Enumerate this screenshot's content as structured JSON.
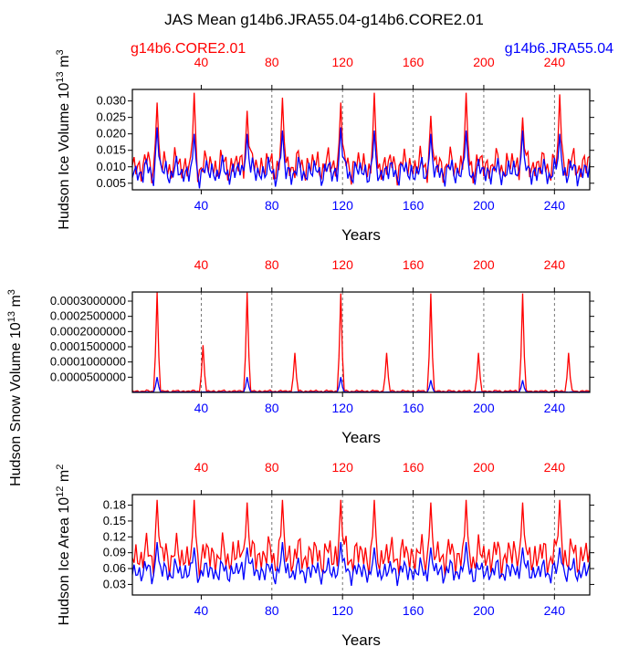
{
  "title": "JAS Mean g14b6.JRA55.04-g14b6.CORE2.01",
  "legend": {
    "left": "g14b6.CORE2.01",
    "right": "g14b6.JRA55.04"
  },
  "colors": {
    "core": "#ff0000",
    "jra": "#0000ff",
    "axis": "#000000",
    "grid": "#555555"
  },
  "chart_data": [
    {
      "type": "line",
      "id": "ice-volume",
      "ylabel": "Hudson Ice Volume 10^13 m^3",
      "xlabel": "Years",
      "xlim": [
        1,
        260
      ],
      "ylim": [
        0.003,
        0.0335
      ],
      "xticks": [
        40,
        80,
        120,
        160,
        200,
        240
      ],
      "ytick_values": [
        0.005,
        0.01,
        0.015,
        0.02,
        0.025,
        0.03
      ],
      "ytick_labels": [
        "0.005",
        "0.010",
        "0.015",
        "0.020",
        "0.025",
        "0.030"
      ],
      "vgrid": [
        80,
        120,
        160,
        200,
        240
      ],
      "series": [
        {
          "name": "g14b6.CORE2.01",
          "color": "#ff0000",
          "base": 0.0105,
          "amp": 0.0055,
          "floor": 0.004,
          "peaks": [
            [
              15,
              0.0295
            ],
            [
              36,
              0.0325
            ],
            [
              66,
              0.027
            ],
            [
              86,
              0.031
            ],
            [
              119,
              0.0295
            ],
            [
              138,
              0.0325
            ],
            [
              170,
              0.0255
            ],
            [
              190,
              0.0325
            ],
            [
              222,
              0.025
            ],
            [
              243,
              0.032
            ]
          ]
        },
        {
          "name": "g14b6.JRA55.04",
          "color": "#0000ff",
          "base": 0.0085,
          "amp": 0.0045,
          "floor": 0.003,
          "peaks": [
            [
              15,
              0.022
            ],
            [
              36,
              0.02
            ],
            [
              66,
              0.02
            ],
            [
              86,
              0.021
            ],
            [
              119,
              0.022
            ],
            [
              138,
              0.021
            ],
            [
              170,
              0.02
            ],
            [
              190,
              0.021
            ],
            [
              222,
              0.021
            ],
            [
              243,
              0.02
            ]
          ]
        }
      ]
    },
    {
      "type": "line",
      "id": "snow-volume",
      "ylabel": "Hudson Snow Volume 10^13 m^3",
      "xlabel": "Years",
      "xlim": [
        1,
        260
      ],
      "ylim": [
        0,
        0.00033
      ],
      "xticks": [
        40,
        80,
        120,
        160,
        200,
        240
      ],
      "ytick_values": [
        5e-05,
        0.0001,
        0.00015,
        0.0002,
        0.00025,
        0.0003
      ],
      "ytick_labels": [
        "0.0000500000",
        "0.0001000000",
        "0.0001500000",
        "0.0002000000",
        "0.0002500000",
        "0.0003000000"
      ],
      "vgrid": [
        40,
        80,
        120,
        160,
        200,
        240
      ],
      "series": [
        {
          "name": "g14b6.CORE2.01",
          "color": "#ff0000",
          "base": 4e-06,
          "amp": 4e-06,
          "floor": 0,
          "peaks": [
            [
              15,
              0.00033
            ],
            [
              41,
              0.000155
            ],
            [
              66,
              0.000328
            ],
            [
              93,
              0.00013
            ],
            [
              119,
              0.000325
            ],
            [
              145,
              0.00013
            ],
            [
              170,
              0.000325
            ],
            [
              197,
              0.00013
            ],
            [
              222,
              0.000325
            ],
            [
              248,
              0.00013
            ]
          ]
        },
        {
          "name": "g14b6.JRA55.04",
          "color": "#0000ff",
          "base": 1e-06,
          "amp": 1e-06,
          "floor": 0,
          "peaks": [
            [
              15,
              5e-05
            ],
            [
              66,
              5e-05
            ],
            [
              119,
              5e-05
            ],
            [
              170,
              4e-05
            ],
            [
              222,
              4e-05
            ]
          ]
        }
      ]
    },
    {
      "type": "line",
      "id": "ice-area",
      "ylabel": "Hudson Ice Area 10^12 m^2",
      "xlabel": "Years",
      "xlim": [
        1,
        260
      ],
      "ylim": [
        0.01,
        0.2
      ],
      "xticks": [
        40,
        80,
        120,
        160,
        200,
        240
      ],
      "ytick_values": [
        0.03,
        0.06,
        0.09,
        0.12,
        0.15,
        0.18
      ],
      "ytick_labels": [
        "0.03",
        "0.06",
        "0.09",
        "0.12",
        "0.15",
        "0.18"
      ],
      "vgrid": [
        80,
        120,
        160,
        200,
        240
      ],
      "series": [
        {
          "name": "g14b6.CORE2.01",
          "color": "#ff0000",
          "base": 0.085,
          "amp": 0.04,
          "floor": 0.04,
          "peaks": [
            [
              15,
              0.19
            ],
            [
              36,
              0.19
            ],
            [
              66,
              0.185
            ],
            [
              86,
              0.19
            ],
            [
              119,
              0.19
            ],
            [
              138,
              0.19
            ],
            [
              170,
              0.185
            ],
            [
              190,
              0.19
            ],
            [
              222,
              0.185
            ],
            [
              243,
              0.19
            ]
          ]
        },
        {
          "name": "g14b6.JRA55.04",
          "color": "#0000ff",
          "base": 0.055,
          "amp": 0.025,
          "floor": 0.02,
          "peaks": [
            [
              15,
              0.11
            ],
            [
              36,
              0.1
            ],
            [
              66,
              0.1
            ],
            [
              86,
              0.11
            ],
            [
              119,
              0.11
            ],
            [
              138,
              0.1
            ],
            [
              170,
              0.1
            ],
            [
              190,
              0.11
            ],
            [
              222,
              0.1
            ],
            [
              243,
              0.1
            ]
          ]
        }
      ]
    }
  ]
}
